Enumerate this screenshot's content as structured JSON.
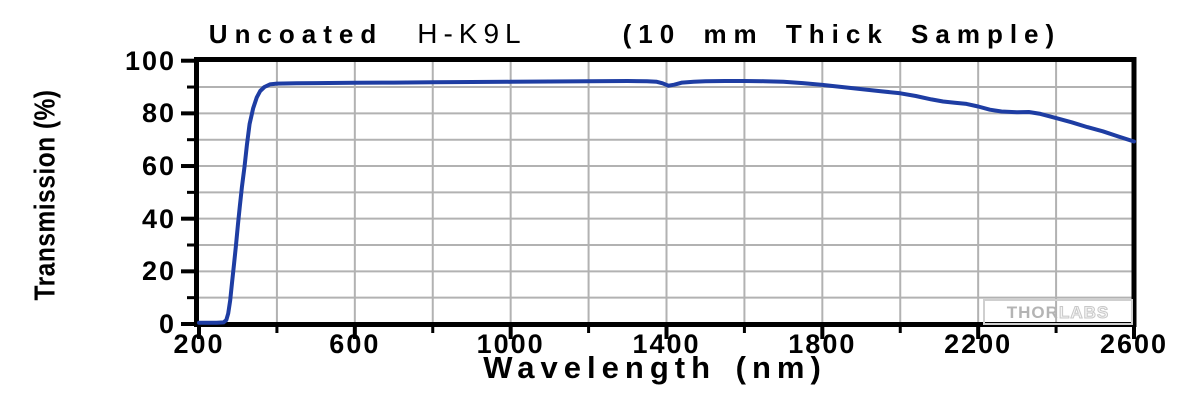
{
  "title": {
    "part1": "Uncoated",
    "part2": "H-K9L",
    "part3": "(10 mm Thick Sample)",
    "full": "Uncoated H-K9L (10 mm Thick Sample)"
  },
  "watermark": {
    "part1": "THOR",
    "part2": "LABS"
  },
  "colors": {
    "curve": "#1e3da3",
    "grid": "#b2b2b2",
    "axis": "#000000",
    "background": "#ffffff",
    "watermark_gray": "#c8c8c8"
  },
  "chart_data": {
    "type": "line",
    "title": "Uncoated H-K9L (10 mm Thick Sample)",
    "xlabel": "Wavelength (nm)",
    "ylabel": "Transmission (%)",
    "xlim": [
      200,
      2600
    ],
    "ylim": [
      0,
      100
    ],
    "grid": true,
    "x_major_ticks": [
      200,
      600,
      1000,
      1400,
      1800,
      2200,
      2600
    ],
    "x_minor_ticks": [
      400,
      800,
      1200,
      1600,
      2000,
      2400
    ],
    "y_major_ticks": [
      0,
      20,
      40,
      60,
      80,
      100
    ],
    "y_minor_ticks": [
      10,
      30,
      50,
      70,
      90
    ],
    "x_gridlines": [
      400,
      600,
      800,
      1000,
      1200,
      1400,
      1600,
      1800,
      2000,
      2200,
      2400
    ],
    "y_gridlines": [
      10,
      20,
      30,
      40,
      50,
      60,
      70,
      80,
      90
    ],
    "legend": null,
    "series": [
      {
        "name": "Transmission",
        "points": [
          [
            200,
            0.5
          ],
          [
            245,
            0.5
          ],
          [
            263,
            0.6
          ],
          [
            270,
            1.5
          ],
          [
            275,
            4
          ],
          [
            280,
            9
          ],
          [
            285,
            16
          ],
          [
            290,
            23
          ],
          [
            295,
            30
          ],
          [
            300,
            38
          ],
          [
            305,
            45
          ],
          [
            310,
            52
          ],
          [
            317,
            60
          ],
          [
            323,
            68
          ],
          [
            330,
            76
          ],
          [
            339,
            82
          ],
          [
            348,
            86
          ],
          [
            357,
            88.5
          ],
          [
            368,
            90
          ],
          [
            382,
            91
          ],
          [
            400,
            91.3
          ],
          [
            450,
            91.4
          ],
          [
            500,
            91.5
          ],
          [
            600,
            91.6
          ],
          [
            700,
            91.7
          ],
          [
            800,
            91.8
          ],
          [
            900,
            91.9
          ],
          [
            1000,
            92.0
          ],
          [
            1100,
            92.1
          ],
          [
            1200,
            92.2
          ],
          [
            1300,
            92.3
          ],
          [
            1350,
            92.2
          ],
          [
            1375,
            92.0
          ],
          [
            1390,
            91.4
          ],
          [
            1405,
            90.5
          ],
          [
            1420,
            90.9
          ],
          [
            1440,
            91.7
          ],
          [
            1470,
            92.0
          ],
          [
            1500,
            92.2
          ],
          [
            1550,
            92.3
          ],
          [
            1600,
            92.3
          ],
          [
            1650,
            92.2
          ],
          [
            1700,
            92.0
          ],
          [
            1750,
            91.5
          ],
          [
            1800,
            90.8
          ],
          [
            1850,
            90.0
          ],
          [
            1900,
            89.2
          ],
          [
            1950,
            88.4
          ],
          [
            2000,
            87.6
          ],
          [
            2040,
            86.6
          ],
          [
            2080,
            85.3
          ],
          [
            2110,
            84.5
          ],
          [
            2140,
            84.0
          ],
          [
            2170,
            83.6
          ],
          [
            2200,
            82.6
          ],
          [
            2230,
            81.4
          ],
          [
            2260,
            80.7
          ],
          [
            2300,
            80.4
          ],
          [
            2330,
            80.5
          ],
          [
            2360,
            79.8
          ],
          [
            2400,
            78.2
          ],
          [
            2440,
            76.6
          ],
          [
            2480,
            74.8
          ],
          [
            2520,
            73.2
          ],
          [
            2560,
            71.2
          ],
          [
            2600,
            69.3
          ]
        ]
      }
    ]
  }
}
